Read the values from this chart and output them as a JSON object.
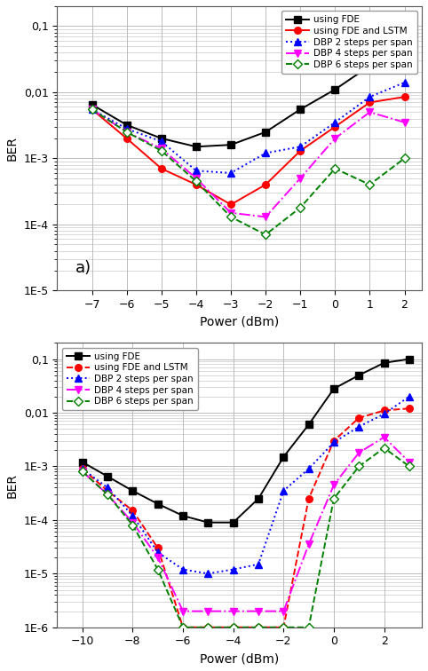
{
  "panel_a": {
    "title": "a)",
    "xlim": [
      -8,
      2.5
    ],
    "ylim": [
      1e-05,
      0.2
    ],
    "xticks": [
      -7,
      -6,
      -5,
      -4,
      -3,
      -2,
      -1,
      0,
      1,
      2
    ],
    "xlabel": "Power (dBm)",
    "ylabel": "BER",
    "legend_loc": "upper right",
    "label_text": "a)",
    "series": [
      {
        "label": "using FDE",
        "color": "#000000",
        "linestyle": "-",
        "marker": "s",
        "markerfacecolor": "#000000",
        "markeredgecolor": "#000000",
        "x": [
          -7,
          -6,
          -5,
          -4,
          -3,
          -2,
          -1,
          0,
          1,
          2
        ],
        "y": [
          0.0065,
          0.0032,
          0.002,
          0.0015,
          0.0016,
          0.0025,
          0.0055,
          0.011,
          0.025,
          0.055
        ]
      },
      {
        "label": "using FDE and LSTM",
        "color": "#ff0000",
        "linestyle": "-",
        "marker": "o",
        "markerfacecolor": "#ff0000",
        "markeredgecolor": "#ff0000",
        "x": [
          -7,
          -6,
          -5,
          -4,
          -3,
          -2,
          -1,
          0,
          1,
          2
        ],
        "y": [
          0.0055,
          0.002,
          0.0007,
          0.0004,
          0.0002,
          0.0004,
          0.0013,
          0.003,
          0.007,
          0.0085
        ]
      },
      {
        "label": "DBP 2 steps per span",
        "color": "#0000ff",
        "linestyle": ":",
        "marker": "^",
        "markerfacecolor": "#0000ff",
        "markeredgecolor": "#0000ff",
        "x": [
          -7,
          -6,
          -5,
          -4,
          -3,
          -2,
          -1,
          0,
          1,
          2
        ],
        "y": [
          0.0055,
          0.0028,
          0.0018,
          0.00065,
          0.0006,
          0.0012,
          0.0015,
          0.0035,
          0.0085,
          0.014
        ]
      },
      {
        "label": "DBP 4 steps per span",
        "color": "#ff00ff",
        "linestyle": "-.",
        "marker": "v",
        "markerfacecolor": "#ff00ff",
        "markeredgecolor": "#ff00ff",
        "x": [
          -7,
          -6,
          -5,
          -4,
          -3,
          -2,
          -1,
          0,
          1,
          2
        ],
        "y": [
          0.0055,
          0.0025,
          0.0014,
          0.0005,
          0.00015,
          0.00013,
          0.0005,
          0.002,
          0.005,
          0.0035
        ]
      },
      {
        "label": "DBP 6 steps per span",
        "color": "#008000",
        "linestyle": "--",
        "marker": "D",
        "markerfacecolor": "#ffffff",
        "markeredgecolor": "#008000",
        "x": [
          -7,
          -6,
          -5,
          -4,
          -3,
          -2,
          -1,
          0,
          1,
          2
        ],
        "y": [
          0.0055,
          0.0025,
          0.0013,
          0.00045,
          0.00013,
          7e-05,
          0.00018,
          0.0007,
          0.0004,
          0.001
        ]
      }
    ]
  },
  "panel_b": {
    "xlim": [
      -11,
      3.5
    ],
    "ylim": [
      1e-06,
      0.2
    ],
    "xticks": [
      -10,
      -8,
      -6,
      -4,
      -2,
      0,
      2
    ],
    "xlabel": "Power (dBm)",
    "ylabel": "BER",
    "legend_loc": "upper left",
    "series": [
      {
        "label": "using FDE",
        "color": "#000000",
        "linestyle": "-",
        "marker": "s",
        "markerfacecolor": "#000000",
        "markeredgecolor": "#000000",
        "x": [
          -10,
          -9,
          -8,
          -7,
          -6,
          -5,
          -4,
          -3,
          -2,
          -1,
          0,
          1,
          2,
          3
        ],
        "y": [
          0.0012,
          0.00065,
          0.00035,
          0.0002,
          0.00012,
          9e-05,
          9e-05,
          0.00025,
          0.0015,
          0.006,
          0.028,
          0.05,
          0.085,
          0.1
        ]
      },
      {
        "label": "using FDE and LSTM",
        "color": "#ff0000",
        "linestyle": "--",
        "marker": "o",
        "markerfacecolor": "#ff0000",
        "markeredgecolor": "#ff0000",
        "x": [
          -10,
          -9,
          -8,
          -7,
          -6,
          -5,
          -4,
          -3,
          -2,
          -1,
          0,
          1,
          2,
          3
        ],
        "y": [
          0.0009,
          0.00035,
          0.00015,
          3e-05,
          1e-06,
          1e-06,
          1e-06,
          1e-06,
          1e-06,
          0.00025,
          0.003,
          0.008,
          0.011,
          0.012
        ]
      },
      {
        "label": "DBP 2 steps per span",
        "color": "#0000ff",
        "linestyle": ":",
        "marker": "^",
        "markerfacecolor": "#0000ff",
        "markeredgecolor": "#0000ff",
        "x": [
          -10,
          -9,
          -8,
          -7,
          -6,
          -5,
          -4,
          -3,
          -2,
          -1,
          0,
          1,
          2,
          3
        ],
        "y": [
          0.0009,
          0.0004,
          0.00012,
          2.5e-05,
          1.2e-05,
          1e-05,
          1.2e-05,
          1.5e-05,
          0.00035,
          0.0009,
          0.0028,
          0.0055,
          0.0095,
          0.02
        ]
      },
      {
        "label": "DBP 4 steps per span",
        "color": "#ff00ff",
        "linestyle": "-.",
        "marker": "v",
        "markerfacecolor": "#ff00ff",
        "markeredgecolor": "#ff00ff",
        "x": [
          -10,
          -9,
          -8,
          -7,
          -6,
          -5,
          -4,
          -3,
          -2,
          -1,
          0,
          1,
          2,
          3
        ],
        "y": [
          0.0008,
          0.0003,
          9e-05,
          2e-05,
          2e-06,
          2e-06,
          2e-06,
          2e-06,
          2e-06,
          3.5e-05,
          0.00045,
          0.0018,
          0.0035,
          0.0012
        ]
      },
      {
        "label": "DBP 6 steps per span",
        "color": "#008000",
        "linestyle": "--",
        "marker": "D",
        "markerfacecolor": "#ffffff",
        "markeredgecolor": "#008000",
        "x": [
          -10,
          -9,
          -8,
          -7,
          -6,
          -5,
          -4,
          -3,
          -2,
          -1,
          0,
          1,
          2,
          3
        ],
        "y": [
          0.0008,
          0.0003,
          8e-05,
          1.2e-05,
          1e-06,
          1e-06,
          1e-06,
          1e-06,
          1e-06,
          1e-06,
          0.00025,
          0.001,
          0.0022,
          0.001
        ]
      }
    ]
  },
  "bg_color": "#ffffff",
  "grid_color": "#bbbbbb",
  "fig_facecolor": "#ffffff"
}
